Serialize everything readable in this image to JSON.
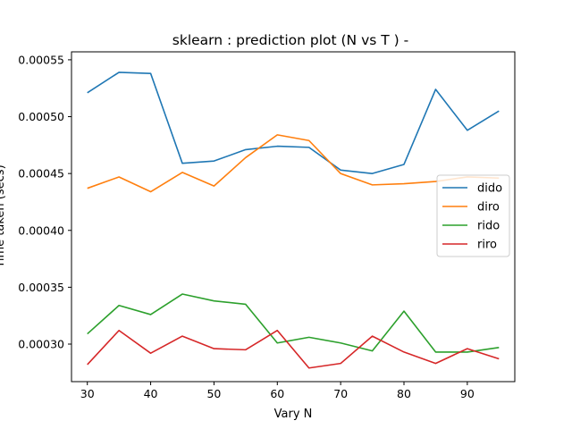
{
  "chart_data": {
    "type": "line",
    "title": "sklearn : prediction plot (N vs T ) -",
    "xlabel": "Vary N",
    "ylabel": "Time taken (secs)",
    "x": [
      30,
      35,
      40,
      45,
      50,
      55,
      60,
      65,
      70,
      75,
      80,
      85,
      90,
      95
    ],
    "xlim": [
      27.5,
      97.5
    ],
    "ylim": [
      0.000267,
      0.000557
    ],
    "xticks": [
      30,
      40,
      50,
      60,
      70,
      80,
      90
    ],
    "yticks": [
      0.0003,
      0.00035,
      0.0004,
      0.00045,
      0.0005,
      0.00055
    ],
    "ytick_labels": [
      "0.00030",
      "0.00035",
      "0.00040",
      "0.00045",
      "0.00050",
      "0.00055"
    ],
    "grid": false,
    "legend_position": "center-right",
    "series": [
      {
        "name": "dido",
        "color": "#1f77b4",
        "values": [
          0.000521,
          0.000539,
          0.000538,
          0.000459,
          0.000461,
          0.000471,
          0.000474,
          0.000473,
          0.000453,
          0.00045,
          0.000458,
          0.000524,
          0.000488,
          0.000505
        ]
      },
      {
        "name": "diro",
        "color": "#ff7f0e",
        "values": [
          0.000437,
          0.000447,
          0.000434,
          0.000451,
          0.000439,
          0.000464,
          0.000484,
          0.000479,
          0.00045,
          0.00044,
          0.000441,
          0.000443,
          0.000447,
          0.000446
        ]
      },
      {
        "name": "rido",
        "color": "#2ca02c",
        "values": [
          0.000309,
          0.000334,
          0.000326,
          0.000344,
          0.000338,
          0.000335,
          0.000301,
          0.000306,
          0.000301,
          0.000294,
          0.000329,
          0.000293,
          0.000293,
          0.000297
        ]
      },
      {
        "name": "riro",
        "color": "#d62728",
        "values": [
          0.000282,
          0.000312,
          0.000292,
          0.000307,
          0.000296,
          0.000295,
          0.000312,
          0.000279,
          0.000283,
          0.000307,
          0.000293,
          0.000283,
          0.000296,
          0.000287
        ]
      }
    ]
  }
}
